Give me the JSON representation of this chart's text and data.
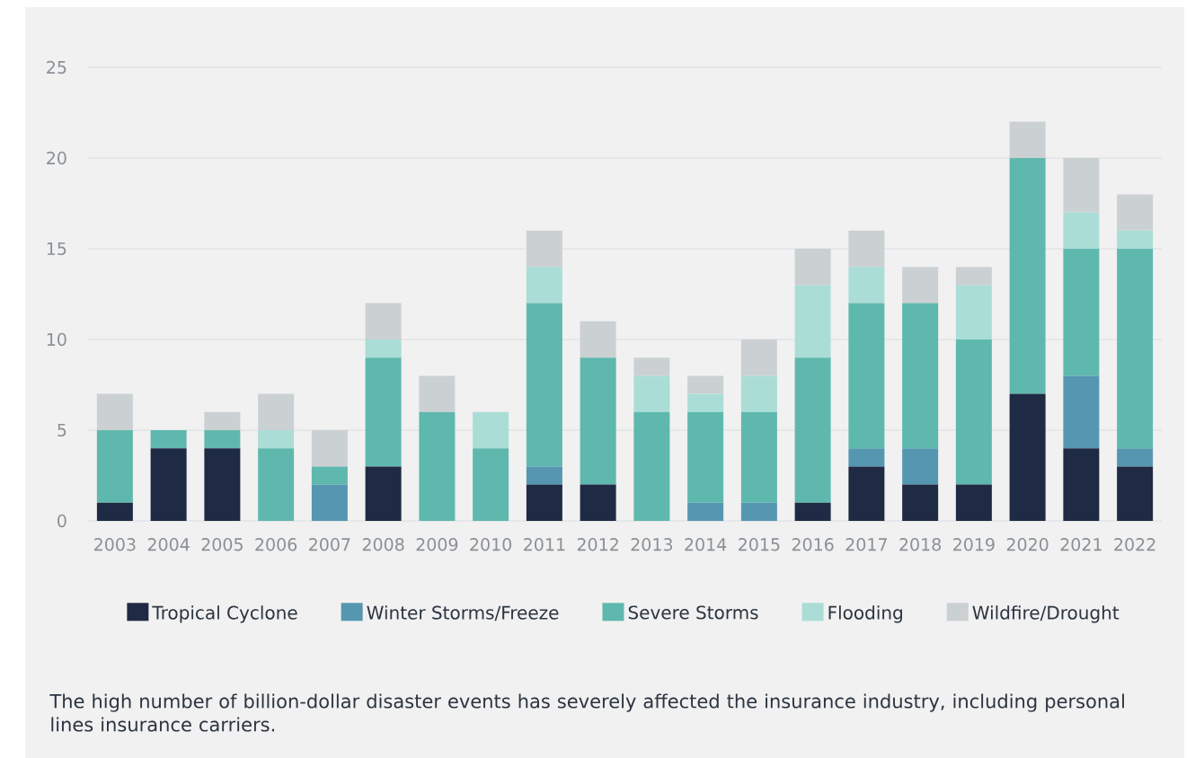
{
  "chart_data": {
    "type": "bar",
    "stacked": true,
    "categories": [
      "2003",
      "2004",
      "2005",
      "2006",
      "2007",
      "2008",
      "2009",
      "2010",
      "2011",
      "2012",
      "2013",
      "2014",
      "2015",
      "2016",
      "2017",
      "2018",
      "2019",
      "2020",
      "2021",
      "2022"
    ],
    "series": [
      {
        "name": "Tropical Cyclone",
        "color": "#1f2a44",
        "values": [
          1,
          4,
          4,
          0,
          0,
          3,
          0,
          0,
          2,
          2,
          0,
          0,
          0,
          1,
          3,
          2,
          2,
          7,
          4,
          3
        ]
      },
      {
        "name": "Winter Storms/Freeze",
        "color": "#5597b0",
        "values": [
          0,
          0,
          0,
          0,
          2,
          0,
          0,
          0,
          1,
          0,
          0,
          1,
          1,
          0,
          1,
          2,
          0,
          0,
          4,
          1
        ]
      },
      {
        "name": "Severe Storms",
        "color": "#5fb8ad",
        "values": [
          4,
          1,
          1,
          4,
          1,
          6,
          6,
          4,
          9,
          7,
          6,
          5,
          5,
          8,
          8,
          8,
          8,
          13,
          7,
          11
        ]
      },
      {
        "name": "Flooding",
        "color": "#aaddd6",
        "values": [
          0,
          0,
          0,
          1,
          0,
          1,
          0,
          2,
          2,
          0,
          2,
          1,
          2,
          4,
          2,
          0,
          3,
          0,
          2,
          1
        ]
      },
      {
        "name": "Wildfire/Drought",
        "color": "#cbd0d3",
        "values": [
          2,
          0,
          1,
          2,
          2,
          2,
          2,
          0,
          2,
          2,
          1,
          1,
          2,
          2,
          2,
          2,
          1,
          2,
          3,
          2
        ]
      }
    ],
    "ylim": [
      0,
      25
    ],
    "yticks": [
      0,
      5,
      10,
      15,
      20,
      25
    ],
    "grid": "y",
    "legend": "bottom",
    "annotations": [
      "The high number of billion-dollar disaster events has severely affected the insurance industry, including personal lines insurance carriers."
    ]
  }
}
